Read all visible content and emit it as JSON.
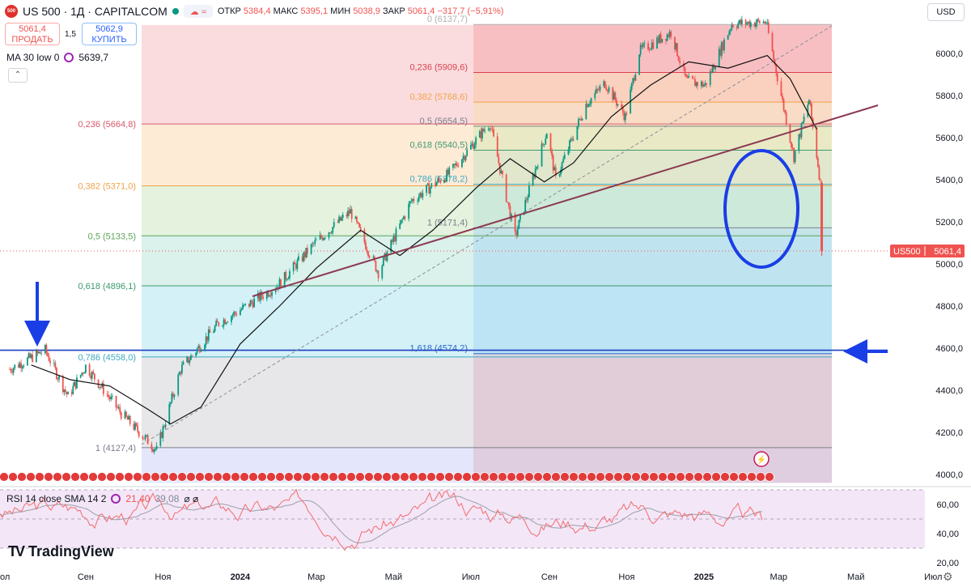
{
  "header": {
    "symbol": "US 500 · 1Д · CAPITALCOM",
    "logo_text": "500",
    "open_label": "ОТКР",
    "open": "5384,4",
    "high_label": "МАКС",
    "high": "5395,1",
    "low_label": "МИН",
    "low": "5038,9",
    "close_label": "ЗАКР",
    "close": "5061,4",
    "change": "−317,7 (−5,91%)"
  },
  "trade": {
    "sell_price": "5061,4",
    "sell_label": "ПРОДАТЬ",
    "spread": "1,5",
    "buy_price": "5062,9",
    "buy_label": "КУПИТЬ"
  },
  "indicator_ma": {
    "name": "MA 30 low 0",
    "value": "5639,7"
  },
  "indicator_rsi": {
    "name": "RSI 14 close SMA 14 2",
    "value": "21,40",
    "sma": "39,08"
  },
  "currency": "USD",
  "brand": "TradingView",
  "price_tag": {
    "symbol": "US500",
    "value": "5061,4"
  },
  "colors": {
    "accent": "#2962ff",
    "up": "#089981",
    "down": "#ef5350",
    "annotation": "#1a3ee6",
    "trendline": "#8b3a52"
  },
  "chart_data": {
    "type": "line",
    "description_series": "candlestick price with 30-period MA",
    "y_axis": {
      "ticks": [
        "4000,0",
        "4200,0",
        "4400,0",
        "4600,0",
        "4800,0",
        "5000,0",
        "5200,0",
        "5400,0",
        "5600,0",
        "5800,0",
        "6000,0"
      ],
      "ylim": [
        3940,
        6140
      ]
    },
    "x_axis": {
      "labels": [
        "Сен",
        "Ноя",
        "2024",
        "Мар",
        "Май",
        "Июл",
        "Сен",
        "Ноя",
        "2025",
        "Мар",
        "Май",
        "Июл"
      ]
    },
    "price_path": [
      [
        "2023-07-03",
        4500
      ],
      [
        "2023-07-31",
        4590
      ],
      [
        "2023-08-18",
        4370
      ],
      [
        "2023-09-01",
        4515
      ],
      [
        "2023-09-29",
        4290
      ],
      [
        "2023-10-27",
        4115
      ],
      [
        "2023-11-15",
        4500
      ],
      [
        "2023-12-15",
        4720
      ],
      [
        "2023-12-29",
        4770
      ],
      [
        "2024-01-31",
        4900
      ],
      [
        "2024-02-29",
        5100
      ],
      [
        "2024-03-28",
        5250
      ],
      [
        "2024-04-19",
        4960
      ],
      [
        "2024-05-15",
        5300
      ],
      [
        "2024-06-14",
        5430
      ],
      [
        "2024-07-16",
        5670
      ],
      [
        "2024-08-05",
        5130
      ],
      [
        "2024-08-30",
        5630
      ],
      [
        "2024-09-06",
        5400
      ],
      [
        "2024-09-30",
        5760
      ],
      [
        "2024-10-15",
        5860
      ],
      [
        "2024-10-31",
        5700
      ],
      [
        "2024-11-11",
        6010
      ],
      [
        "2024-12-06",
        6100
      ],
      [
        "2024-12-18",
        5870
      ],
      [
        "2025-01-02",
        5850
      ],
      [
        "2025-01-23",
        6140
      ],
      [
        "2025-02-19",
        6150
      ],
      [
        "2025-03-13",
        5510
      ],
      [
        "2025-03-25",
        5780
      ],
      [
        "2025-04-03",
        5384
      ],
      [
        "2025-04-04",
        5061
      ]
    ],
    "ma_path": [
      [
        "2023-07-20",
        4520
      ],
      [
        "2023-08-20",
        4450
      ],
      [
        "2023-09-20",
        4420
      ],
      [
        "2023-10-20",
        4310
      ],
      [
        "2023-11-07",
        4240
      ],
      [
        "2023-12-01",
        4320
      ],
      [
        "2024-01-01",
        4620
      ],
      [
        "2024-02-01",
        4800
      ],
      [
        "2024-03-01",
        4980
      ],
      [
        "2024-04-05",
        5160
      ],
      [
        "2024-05-06",
        5040
      ],
      [
        "2024-06-01",
        5160
      ],
      [
        "2024-07-05",
        5360
      ],
      [
        "2024-08-01",
        5500
      ],
      [
        "2024-08-28",
        5390
      ],
      [
        "2024-09-20",
        5480
      ],
      [
        "2024-10-20",
        5700
      ],
      [
        "2024-11-20",
        5850
      ],
      [
        "2024-12-20",
        5960
      ],
      [
        "2025-01-20",
        5930
      ],
      [
        "2025-02-20",
        5990
      ],
      [
        "2025-03-10",
        5880
      ],
      [
        "2025-03-31",
        5640
      ]
    ],
    "rsi": {
      "ticks": [
        "20,00",
        "40,00",
        "60,00"
      ],
      "ylim": [
        15,
        75
      ]
    },
    "fib_retracement_1": {
      "levels": [
        {
          "label": "0,236 (5664,8)",
          "value": 5664.8
        },
        {
          "label": "0,382 (5371,0)",
          "value": 5371.0
        },
        {
          "label": "0,5 (5133,5)",
          "value": 5133.5
        },
        {
          "label": "0,618 (4896,1)",
          "value": 4896.1
        },
        {
          "label": "0,786 (4558,0)",
          "value": 4558.0
        },
        {
          "label": "1 (4127,4)",
          "value": 4127.4
        }
      ]
    },
    "fib_retracement_2": {
      "levels": [
        {
          "label": "0 (6137,7)",
          "value": 6137.7
        },
        {
          "label": "0,236 (5909,6)",
          "value": 5909.6
        },
        {
          "label": "0,382 (5768,6)",
          "value": 5768.6
        },
        {
          "label": "0,5 (5654,5)",
          "value": 5654.5
        },
        {
          "label": "0,618 (5540,5)",
          "value": 5540.5
        },
        {
          "label": "0,786 (5378,2)",
          "value": 5378.2
        },
        {
          "label": "1 (5171,4)",
          "value": 5171.4
        },
        {
          "label": "1,618 (4574,2)",
          "value": 4574.2
        }
      ]
    },
    "horizontal_level": 4590,
    "current_price": 5061.4
  }
}
